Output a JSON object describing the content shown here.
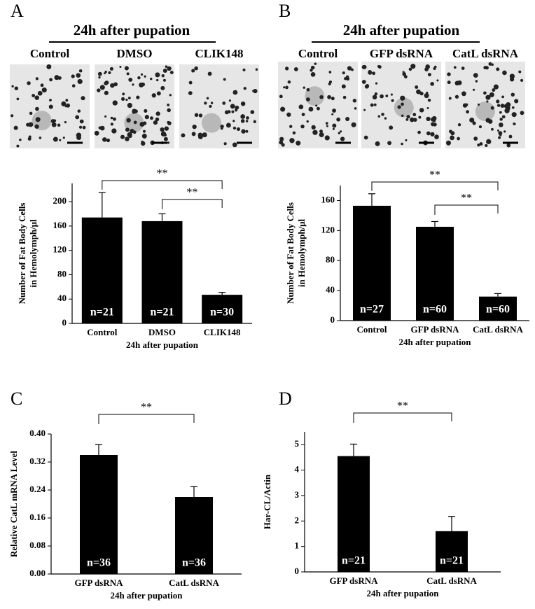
{
  "chart_data": [
    {
      "type": "bar",
      "panel": "A",
      "image_heading": "24h after pupation",
      "image_labels": [
        "Control",
        "DMSO",
        "CLIK148"
      ],
      "ylabel": [
        "Number of Fat Body Cells",
        "in Hemolymph/μl"
      ],
      "xlabel": "24h after pupation",
      "categories": [
        "Control",
        "DMSO",
        "CLIK148"
      ],
      "values": [
        174,
        168,
        47
      ],
      "errors": [
        41,
        12,
        4
      ],
      "n_labels": [
        "n=21",
        "n=21",
        "n=30"
      ],
      "color": "#000000",
      "ylim": [
        0,
        230
      ],
      "yticks": [
        0,
        40,
        80,
        120,
        160,
        200
      ],
      "significance": [
        {
          "between": [
            0,
            2
          ],
          "label": "**"
        },
        {
          "between": [
            1,
            2
          ],
          "label": "**"
        }
      ]
    },
    {
      "type": "bar",
      "panel": "B",
      "image_heading": "24h after pupation",
      "image_labels": [
        "Control",
        "GFP dsRNA",
        "CatL dsRNA"
      ],
      "ylabel": [
        "Number of Fat Body Cells",
        "in Hemolymph/μl"
      ],
      "xlabel": "24h after pupation",
      "categories": [
        "Control",
        "GFP dsRNA",
        "CatL dsRNA"
      ],
      "values": [
        153,
        125,
        32
      ],
      "errors": [
        16,
        7,
        4
      ],
      "n_labels": [
        "n=27",
        "n=60",
        "n=60"
      ],
      "color": "#000000",
      "ylim": [
        0,
        180
      ],
      "yticks": [
        0,
        40,
        80,
        120,
        160
      ],
      "significance": [
        {
          "between": [
            0,
            2
          ],
          "label": "**"
        },
        {
          "between": [
            1,
            2
          ],
          "label": "**"
        }
      ]
    },
    {
      "type": "bar",
      "panel": "C",
      "ylabel": [
        "Relative CatL mRNA Level"
      ],
      "xlabel": "24h after pupation",
      "categories": [
        "GFP dsRNA",
        "CatL dsRNA"
      ],
      "values": [
        0.34,
        0.22
      ],
      "errors": [
        0.03,
        0.03
      ],
      "n_labels": [
        "n=36",
        "n=36"
      ],
      "color": "#000000",
      "ylim": [
        0,
        0.4
      ],
      "yticks": [
        {
          "value": 0,
          "label": "0.00"
        },
        {
          "value": 0.08,
          "label": "0.08"
        },
        {
          "value": 0.16,
          "label": "0.16"
        },
        {
          "value": 0.24,
          "label": "0.24"
        },
        {
          "value": 0.32,
          "label": "0.32"
        },
        {
          "value": 0.4,
          "label": "0.40"
        }
      ],
      "significance": [
        {
          "between": [
            0,
            1
          ],
          "label": "**"
        }
      ]
    },
    {
      "type": "bar",
      "panel": "D",
      "ylabel": [
        "Har-CL/Actin"
      ],
      "xlabel": "24h after pupation",
      "categories": [
        "GFP dsRNA",
        "CatL dsRNA"
      ],
      "values": [
        4.55,
        1.6
      ],
      "errors": [
        0.47,
        0.58
      ],
      "n_labels": [
        "n=21",
        "n=21"
      ],
      "color": "#000000",
      "ylim": [
        0,
        5.5
      ],
      "yticks": [
        0,
        1,
        2,
        3,
        4,
        5
      ],
      "significance": [
        {
          "between": [
            0,
            1
          ],
          "label": "**"
        }
      ]
    }
  ]
}
